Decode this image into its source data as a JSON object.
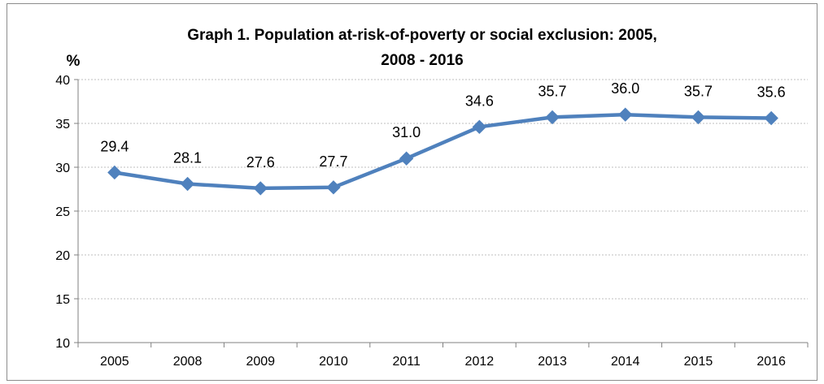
{
  "chart_data": {
    "type": "line",
    "title_line1": "Graph 1. Population at-risk-of-poverty or social exclusion: 2005,",
    "title_line2": "2008 - 2016",
    "unit": "%",
    "categories": [
      "2005",
      "2008",
      "2009",
      "2010",
      "2011",
      "2012",
      "2013",
      "2014",
      "2015",
      "2016"
    ],
    "values": [
      29.4,
      28.1,
      27.6,
      27.7,
      31.0,
      34.6,
      35.7,
      36.0,
      35.7,
      35.6
    ],
    "value_labels": [
      "29.4",
      "28.1",
      "27.6",
      "27.7",
      "31.0",
      "34.6",
      "35.7",
      "36.0",
      "35.7",
      "35.6"
    ],
    "ylim": [
      10,
      40
    ],
    "yticks": [
      10,
      15,
      20,
      25,
      30,
      35,
      40
    ],
    "ytick_labels": [
      "10",
      "15",
      "20",
      "25",
      "30",
      "35",
      "40"
    ],
    "grid": true,
    "legend": "none",
    "series_color": "#4f81bd",
    "marker": "diamond"
  }
}
